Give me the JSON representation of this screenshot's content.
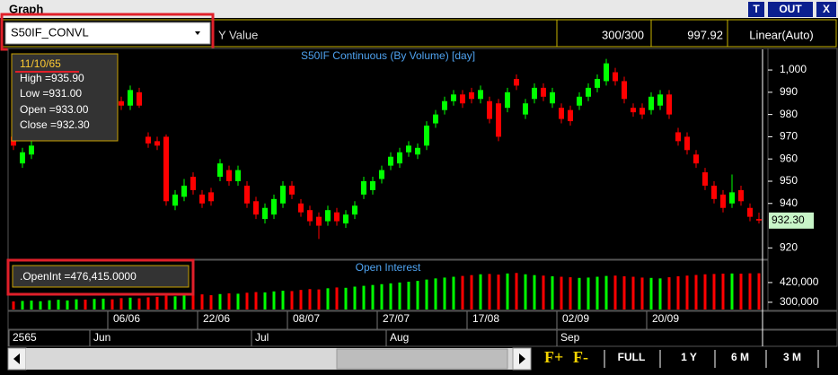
{
  "window": {
    "title": "Graph",
    "buttons": [
      "T",
      "OUT",
      "X"
    ]
  },
  "toolbar": {
    "symbol": "S50IF_CONVL",
    "field": "Y Value",
    "count": "300/300",
    "value": "997.92",
    "scale": "Linear(Auto)"
  },
  "info": {
    "date": "11/10/65",
    "lines": [
      "High =935.90",
      "Low =931.00",
      "Open =933.00",
      "Close =932.30"
    ]
  },
  "chart_data": {
    "type": "candlestick",
    "title": "S50IF Continuous (By Volume) [day]",
    "up_color": "#00ff00",
    "down_color": "#ff0000",
    "categories": [
      null,
      null,
      null,
      null,
      null,
      null,
      null,
      null,
      null,
      null,
      null,
      "06/06",
      null,
      null,
      null,
      null,
      null,
      null,
      null,
      null,
      null,
      "22/06",
      null,
      null,
      null,
      null,
      null,
      null,
      null,
      null,
      null,
      "08/07",
      null,
      null,
      null,
      null,
      null,
      null,
      null,
      null,
      null,
      "27/07",
      null,
      null,
      null,
      null,
      null,
      null,
      null,
      null,
      null,
      "17/08",
      null,
      null,
      null,
      null,
      null,
      null,
      null,
      null,
      null,
      "02/09",
      null,
      null,
      null,
      null,
      null,
      null,
      null,
      null,
      null,
      "20/09",
      null,
      null,
      null,
      null,
      null,
      null,
      null,
      null,
      null,
      null,
      null,
      null
    ],
    "months": [
      "2565",
      null,
      null,
      null,
      null,
      null,
      null,
      null,
      null,
      "Jun",
      null,
      null,
      null,
      null,
      null,
      null,
      null,
      null,
      null,
      null,
      null,
      null,
      null,
      null,
      null,
      null,
      null,
      "Jul",
      null,
      null,
      null,
      null,
      null,
      null,
      null,
      null,
      null,
      null,
      null,
      null,
      null,
      null,
      "Aug",
      null,
      null,
      null,
      null,
      null,
      null,
      null,
      null,
      null,
      null,
      null,
      null,
      null,
      null,
      null,
      null,
      null,
      null,
      "Sep",
      null,
      null,
      null,
      null,
      null,
      null,
      null,
      null,
      null,
      null,
      null,
      null,
      null,
      null,
      null,
      null,
      null,
      null,
      null,
      null,
      null,
      null
    ],
    "open": [
      970,
      958,
      962,
      972,
      976,
      981,
      984,
      987,
      989,
      986,
      988,
      991,
      986,
      984,
      990,
      970,
      968,
      970,
      939,
      943,
      952,
      944,
      945,
      952,
      955,
      950,
      948,
      941,
      933,
      935,
      940,
      948,
      940,
      937,
      934,
      932,
      936,
      931,
      935,
      944,
      946,
      951,
      957,
      958,
      963,
      962,
      966,
      976,
      982,
      986,
      989,
      990,
      987,
      986,
      985,
      983,
      996,
      980,
      987,
      992,
      985,
      983,
      982,
      984,
      988,
      992,
      995,
      999,
      995,
      983,
      983,
      982,
      984,
      989,
      972,
      970,
      962,
      954,
      948,
      944,
      940,
      946,
      938,
      933
    ],
    "high": [
      972,
      965,
      968,
      977,
      982,
      987,
      990,
      992,
      991,
      990,
      993,
      994,
      988,
      993,
      992,
      972,
      970,
      971,
      946,
      951,
      954,
      946,
      947,
      960,
      957,
      957,
      950,
      943,
      940,
      944,
      950,
      950,
      942,
      939,
      936,
      939,
      938,
      937,
      941,
      952,
      952,
      957,
      963,
      965,
      968,
      967,
      977,
      982,
      988,
      991,
      991,
      992,
      993,
      988,
      987,
      992,
      998,
      987,
      994,
      994,
      992,
      985,
      984,
      990,
      994,
      998,
      1005,
      1001,
      997,
      985,
      985,
      990,
      991,
      991,
      974,
      972,
      964,
      956,
      950,
      946,
      953,
      948,
      940,
      935.9
    ],
    "low": [
      964,
      956,
      960,
      970,
      974,
      979,
      982,
      985,
      984,
      984,
      986,
      985,
      982,
      982,
      983,
      965,
      964,
      939,
      937,
      941,
      944,
      938,
      939,
      950,
      948,
      948,
      938,
      933,
      931,
      933,
      938,
      942,
      934,
      930,
      924,
      930,
      930,
      929,
      933,
      942,
      944,
      949,
      955,
      956,
      961,
      960,
      964,
      974,
      980,
      984,
      983,
      985,
      985,
      976,
      968,
      981,
      991,
      978,
      985,
      986,
      983,
      976,
      975,
      982,
      986,
      990,
      993,
      993,
      985,
      979,
      978,
      980,
      982,
      978,
      966,
      962,
      956,
      946,
      940,
      936,
      938,
      939,
      932,
      931
    ],
    "close": [
      966,
      963,
      966,
      975,
      980,
      985,
      988,
      990,
      986,
      988,
      991,
      987,
      984,
      991,
      984,
      967,
      966,
      941,
      944,
      948,
      946,
      940,
      941,
      958,
      950,
      955,
      940,
      935,
      938,
      942,
      948,
      944,
      936,
      932,
      930,
      937,
      932,
      935,
      939,
      950,
      950,
      955,
      961,
      963,
      966,
      965,
      975,
      980,
      986,
      989,
      985,
      987,
      991,
      978,
      970,
      990,
      993,
      985,
      992,
      988,
      990,
      978,
      977,
      988,
      992,
      996,
      1003,
      995,
      987,
      981,
      980,
      988,
      989,
      980,
      968,
      964,
      958,
      948,
      942,
      938,
      945,
      941,
      934,
      932.3
    ],
    "ylim": [
      915.3,
      1009.3
    ],
    "yticks": [
      {
        "value": 1000,
        "label": "1,000"
      },
      990,
      980,
      970,
      960,
      950,
      940,
      920
    ],
    "last_value": {
      "value": 932.3,
      "label": "932.30"
    },
    "open_interest": {
      "type": "bar",
      "title": "Open Interest",
      "label": ".OpenInt =476,415.0000",
      "values": [
        305000,
        308000,
        310000,
        306000,
        312000,
        315000,
        311000,
        318000,
        316000,
        320000,
        322000,
        318000,
        325000,
        328000,
        324000,
        330000,
        333000,
        340000,
        336000,
        342000,
        345000,
        348000,
        343000,
        350000,
        354000,
        352000,
        358000,
        362000,
        360000,
        366000,
        370000,
        368000,
        375000,
        380000,
        378000,
        385000,
        390000,
        388000,
        395000,
        400000,
        405000,
        410000,
        415000,
        420000,
        425000,
        430000,
        438000,
        445000,
        450000,
        455000,
        460000,
        465000,
        470000,
        472000,
        468000,
        475000,
        478000,
        470000,
        465000,
        462000,
        458000,
        455000,
        452000,
        448000,
        450000,
        455000,
        460000,
        462000,
        458000,
        455000,
        450000,
        448000,
        445000,
        452000,
        458000,
        462000,
        466000,
        470000,
        472000,
        474000,
        475000,
        474000,
        476000,
        476415
      ],
      "ylim": [
        256000,
        545000
      ],
      "yticks": [
        {
          "value": 420000,
          "label": "420,000"
        },
        {
          "value": 300000,
          "label": "300,000"
        }
      ]
    }
  },
  "footer": {
    "zoom_in": "F+",
    "zoom_out": "F-",
    "ranges": [
      "FULL",
      "1 Y",
      "6 M",
      "3 M"
    ]
  }
}
